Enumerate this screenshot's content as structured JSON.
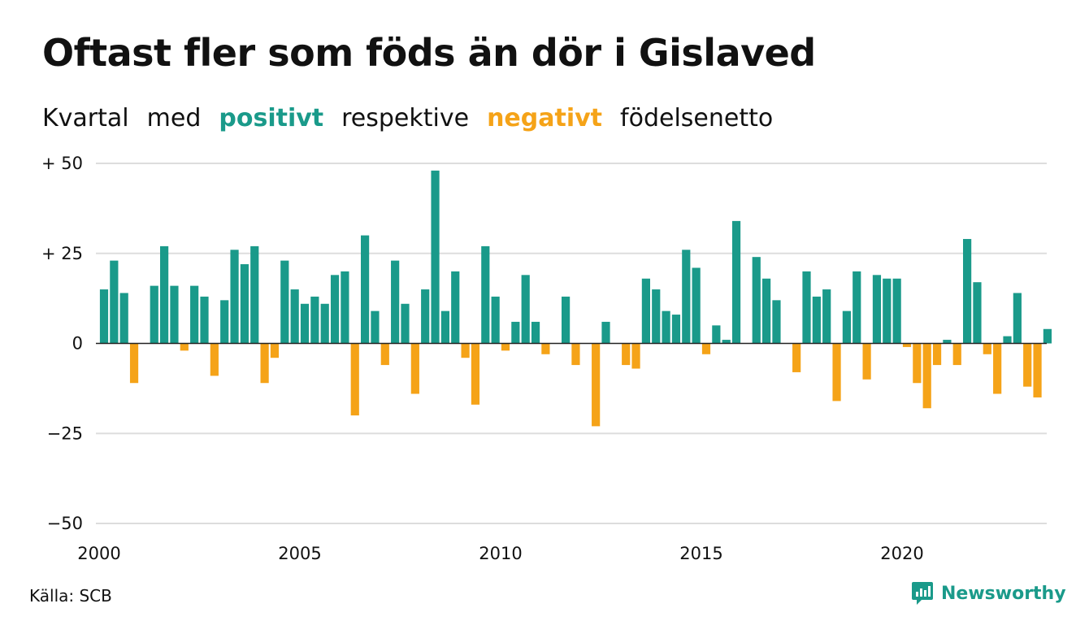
{
  "title": "Oftast fler som föds än dör i Gislaved",
  "subtitle": {
    "part1": "Kvartal",
    "part2": "med",
    "positive_word": "positivt",
    "part3": "respektive",
    "negative_word": "negativt",
    "part4": "födelsenetto"
  },
  "colors": {
    "positive": "#1a9a8a",
    "negative": "#f5a318",
    "grid": "#dddddd",
    "baseline": "#222222"
  },
  "source": "Källa: SCB",
  "brand": {
    "name": "Newsworthy",
    "icon": "chart-bubble-icon"
  },
  "chart_data": {
    "type": "bar",
    "title": "Oftast fler som föds än dör i Gislaved",
    "xlabel": "",
    "ylabel": "",
    "ylim": [
      -50,
      50
    ],
    "yticks": [
      50,
      25,
      0,
      -25,
      -50
    ],
    "ytick_labels": [
      "+ 50",
      "+ 25",
      "0",
      "−25",
      "−50"
    ],
    "xlim": [
      2000,
      2023.75
    ],
    "xticks": [
      2000,
      2005,
      2010,
      2015,
      2020
    ],
    "xtick_labels": [
      "2000",
      "2005",
      "2010",
      "2015",
      "2020"
    ],
    "grid": true,
    "legend": "none",
    "categories": [
      "2000K1",
      "2000K2",
      "2000K3",
      "2000K4",
      "2001K1",
      "2001K2",
      "2001K3",
      "2001K4",
      "2002K1",
      "2002K2",
      "2002K3",
      "2002K4",
      "2003K1",
      "2003K2",
      "2003K3",
      "2003K4",
      "2004K1",
      "2004K2",
      "2004K3",
      "2004K4",
      "2005K1",
      "2005K2",
      "2005K3",
      "2005K4",
      "2006K1",
      "2006K2",
      "2006K3",
      "2006K4",
      "2007K1",
      "2007K2",
      "2007K3",
      "2007K4",
      "2008K1",
      "2008K2",
      "2008K3",
      "2008K4",
      "2009K1",
      "2009K2",
      "2009K3",
      "2009K4",
      "2010K1",
      "2010K2",
      "2010K3",
      "2010K4",
      "2011K1",
      "2011K2",
      "2011K3",
      "2011K4",
      "2012K1",
      "2012K2",
      "2012K3",
      "2012K4",
      "2013K1",
      "2013K2",
      "2013K3",
      "2013K4",
      "2014K1",
      "2014K2",
      "2014K3",
      "2014K4",
      "2015K1",
      "2015K2",
      "2015K3",
      "2015K4",
      "2016K1",
      "2016K2",
      "2016K3",
      "2016K4",
      "2017K1",
      "2017K2",
      "2017K3",
      "2017K4",
      "2018K1",
      "2018K2",
      "2018K3",
      "2018K4",
      "2019K1",
      "2019K2",
      "2019K3",
      "2019K4",
      "2020K1",
      "2020K2",
      "2020K3",
      "2020K4",
      "2021K1",
      "2021K2",
      "2021K3",
      "2021K4",
      "2022K1",
      "2022K2",
      "2022K3",
      "2022K4",
      "2023K1",
      "2023K2",
      "2023K3",
      "2023K4"
    ],
    "values": [
      15,
      23,
      14,
      -11,
      0,
      16,
      27,
      16,
      -2,
      16,
      13,
      -9,
      12,
      26,
      22,
      27,
      -11,
      -4,
      23,
      15,
      11,
      13,
      11,
      19,
      20,
      -20,
      30,
      9,
      -6,
      23,
      11,
      -14,
      15,
      48,
      9,
      20,
      -4,
      -17,
      27,
      13,
      -2,
      6,
      19,
      6,
      -3,
      0,
      13,
      -6,
      0,
      -23,
      6,
      0,
      -6,
      -7,
      18,
      15,
      9,
      8,
      26,
      21,
      -3,
      5,
      1,
      34,
      0,
      24,
      18,
      12,
      0,
      -8,
      20,
      13,
      15,
      -16,
      9,
      20,
      -10,
      19,
      18,
      18,
      -1,
      -11,
      -18,
      -6,
      1,
      -6,
      29,
      17,
      -3,
      -14,
      2,
      14,
      -12,
      -15,
      4,
      0
    ]
  }
}
